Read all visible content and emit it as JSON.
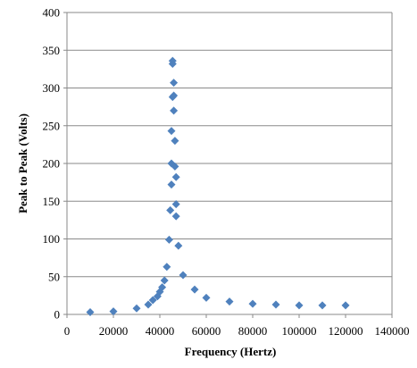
{
  "chart_data": {
    "type": "scatter",
    "title": "",
    "xlabel": "Frequency  (Hertz)",
    "ylabel": "Peak to Peak  (Volts)",
    "xlim": [
      0,
      140000
    ],
    "ylim": [
      0,
      400
    ],
    "x_ticks": [
      0,
      20000,
      40000,
      60000,
      80000,
      100000,
      120000,
      140000
    ],
    "y_ticks": [
      0,
      50,
      100,
      150,
      200,
      250,
      300,
      350,
      400
    ],
    "x_tick_labels": [
      "0",
      "20000",
      "40000",
      "60000",
      "80000",
      "100000",
      "120000",
      "140000"
    ],
    "y_tick_labels": [
      "0",
      "50",
      "100",
      "150",
      "200",
      "250",
      "300",
      "350",
      "400"
    ],
    "grid": "horizontal",
    "legend": "none",
    "marker": "diamond",
    "color": "#4f81bd",
    "points": [
      {
        "x": 10000,
        "y": 3
      },
      {
        "x": 20000,
        "y": 4
      },
      {
        "x": 30000,
        "y": 8
      },
      {
        "x": 35000,
        "y": 13
      },
      {
        "x": 37000,
        "y": 19
      },
      {
        "x": 39000,
        "y": 24
      },
      {
        "x": 40000,
        "y": 30
      },
      {
        "x": 41000,
        "y": 36
      },
      {
        "x": 42000,
        "y": 45
      },
      {
        "x": 43000,
        "y": 63
      },
      {
        "x": 44000,
        "y": 99
      },
      {
        "x": 44500,
        "y": 138
      },
      {
        "x": 45000,
        "y": 172
      },
      {
        "x": 45000,
        "y": 200
      },
      {
        "x": 45000,
        "y": 243
      },
      {
        "x": 45500,
        "y": 288
      },
      {
        "x": 45500,
        "y": 336
      },
      {
        "x": 45500,
        "y": 332
      },
      {
        "x": 46000,
        "y": 307
      },
      {
        "x": 46000,
        "y": 290
      },
      {
        "x": 46000,
        "y": 270
      },
      {
        "x": 46500,
        "y": 230
      },
      {
        "x": 46500,
        "y": 196
      },
      {
        "x": 47000,
        "y": 182
      },
      {
        "x": 47000,
        "y": 146
      },
      {
        "x": 47000,
        "y": 130
      },
      {
        "x": 48000,
        "y": 91
      },
      {
        "x": 50000,
        "y": 52
      },
      {
        "x": 55000,
        "y": 33
      },
      {
        "x": 60000,
        "y": 22
      },
      {
        "x": 70000,
        "y": 17
      },
      {
        "x": 80000,
        "y": 14
      },
      {
        "x": 90000,
        "y": 13
      },
      {
        "x": 100000,
        "y": 12
      },
      {
        "x": 110000,
        "y": 12
      },
      {
        "x": 120000,
        "y": 12
      }
    ]
  }
}
